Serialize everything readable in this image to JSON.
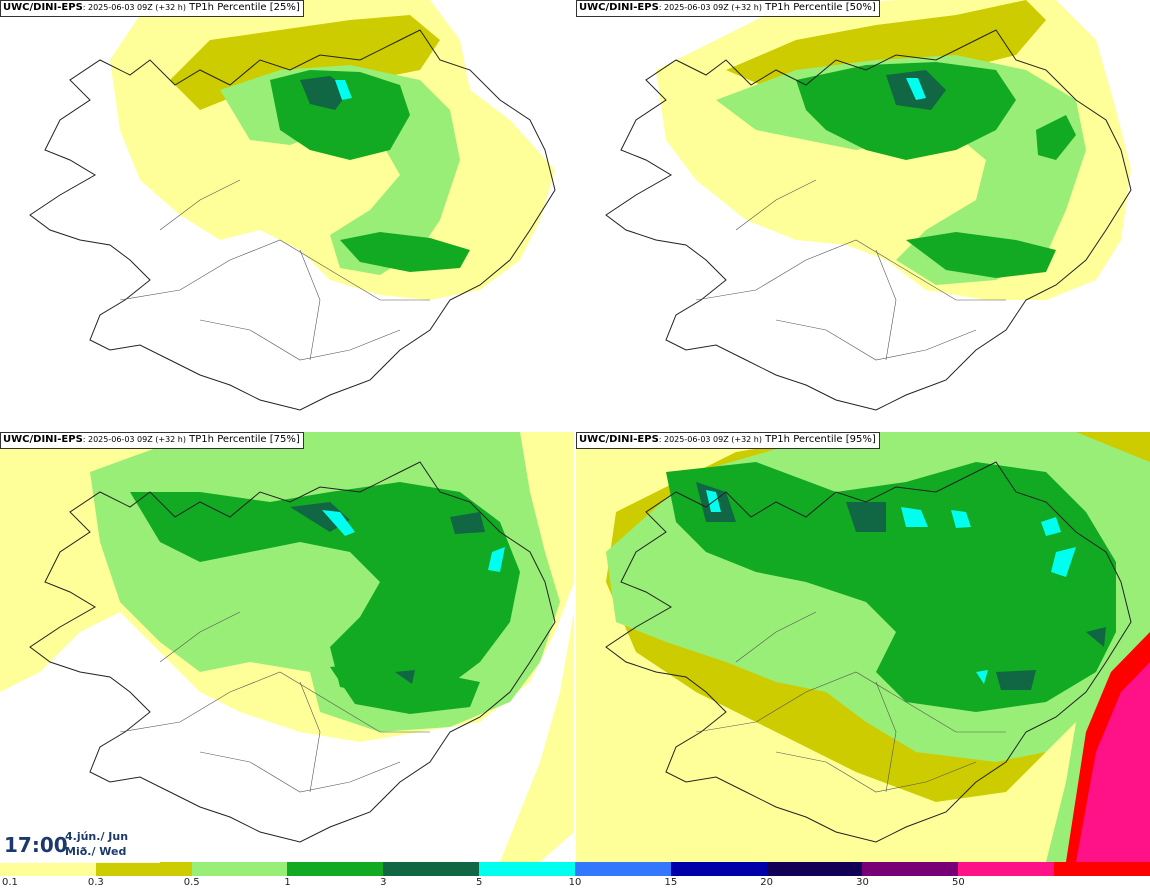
{
  "panels": [
    {
      "model": "UWC/DINI-EPS",
      "run": ": 2025-06-03 09Z (+32 h)",
      "field": "TP1h Percentile [25%]"
    },
    {
      "model": "UWC/DINI-EPS",
      "run": ": 2025-06-03 09Z (+32 h)",
      "field": "TP1h Percentile [50%]"
    },
    {
      "model": "UWC/DINI-EPS",
      "run": ": 2025-06-03 09Z (+32 h)",
      "field": "TP1h Percentile [75%]"
    },
    {
      "model": "UWC/DINI-EPS",
      "run": ": 2025-06-03 09Z (+32 h)",
      "field": "TP1h Percentile [95%]"
    }
  ],
  "valid_time": {
    "time": "17:00",
    "date_line1": "4.jún./ Jun",
    "date_line2": "Mið./ Wed"
  },
  "legend": {
    "colors": [
      "#ffff99",
      "#cccc00",
      "#99ee77",
      "#11aa22",
      "#116644",
      "#00ffee",
      "#3377ff",
      "#0000aa",
      "#110055",
      "#770077",
      "#ff1188",
      "#ff0000"
    ],
    "labels": [
      "0.1",
      "0.3",
      "0.5",
      "1",
      "3",
      "5",
      "10",
      "15",
      "20",
      "30",
      "50"
    ]
  },
  "map_colors": {
    "land_outline": "#222222",
    "roads": "#555555"
  }
}
